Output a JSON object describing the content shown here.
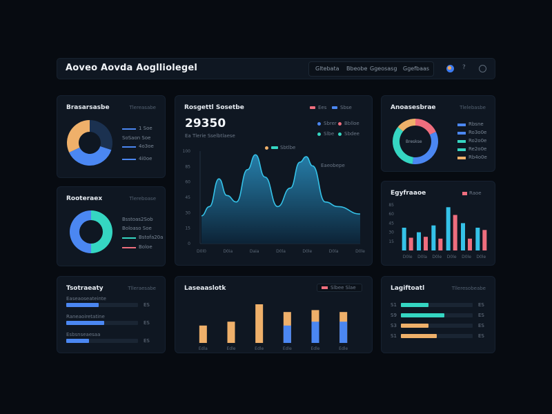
{
  "app": {
    "title": "Aoveo Aovda Aoglliolegel"
  },
  "nav": {
    "tabs": [
      {
        "label": "Gltebata"
      },
      {
        "label": "Bbeobe"
      },
      {
        "label": "Ggeosasg"
      },
      {
        "label": "Ggefbaas"
      }
    ],
    "help_glyph": "?"
  },
  "colors": {
    "blue": "#4b87f2",
    "teal": "#35d6c2",
    "orange": "#efb06a",
    "pink": "#ef6e7e",
    "navy": "#1b3150",
    "cyan": "#35c2e8"
  },
  "cards": {
    "donut1": {
      "title": "Brasarsasbe",
      "sub": "Tlereasabe",
      "legend": [
        {
          "label": "1 Soe",
          "color": "#4b87f2"
        },
        {
          "label": "SoSaon Soe",
          "color": "#4b87f2"
        },
        {
          "label": "4o3oe",
          "color": "#4b87f2"
        },
        {
          "label": "4i0oe",
          "color": "#4b87f2"
        }
      ]
    },
    "donut2": {
      "title": "Rooteraex",
      "sub": "Tlereboase",
      "legend": [
        {
          "label": "Bsstoas2Sob",
          "color": "#35d6c2"
        },
        {
          "label": "Boloaso Soe",
          "color": "#4b87f2"
        },
        {
          "label": "Bstofa20a",
          "color": "#35d6c2"
        },
        {
          "label": "Boloe",
          "color": "#ef6e7e"
        }
      ]
    },
    "main": {
      "title": "Rosgettl Sosetbe",
      "big_value": "29350",
      "caption": "Ea Tlerie Sselbtlaese",
      "toggle_labels": [
        "Ees",
        "Sbse"
      ],
      "legend": [
        {
          "label": "Sbrer",
          "color": "#4b87f2"
        },
        {
          "label": "Bblloe",
          "color": "#ef6e7e"
        },
        {
          "label": "Slbe",
          "color": "#35d6c2"
        },
        {
          "label": "Sbdee",
          "color": "#35d6c2"
        }
      ],
      "series_tag": "Sbtlbe",
      "annotation": "Eaeobepe"
    },
    "donut3": {
      "title": "Anoasesbrae",
      "sub": "Tlelebasbe",
      "center_label": "Breskse",
      "legend": [
        {
          "label": "Rbsne",
          "color": "#4b87f2"
        },
        {
          "label": "Ro3o0e",
          "color": "#4b87f2"
        },
        {
          "label": "Ro2o0e",
          "color": "#35d6c2"
        },
        {
          "label": "Re2o0e",
          "color": "#35d6c2"
        },
        {
          "label": "Rb4o0e",
          "color": "#efb06a"
        }
      ]
    },
    "bars_right": {
      "title": "Egyfraaoe",
      "sub": "Raoe"
    },
    "hbars_left": {
      "title": "Tsotraeaty",
      "sub": "Tlleraesabe",
      "rows": [
        {
          "label": "Easeaoseateinte",
          "value_label": "ES",
          "value": 0.45,
          "color": "#4b87f2"
        },
        {
          "label": "Raneaoiretatine",
          "value_label": "ES",
          "value": 0.53,
          "color": "#4b87f2"
        },
        {
          "label": "Esbsnseaesaa",
          "value_label": "ES",
          "value": 0.32,
          "color": "#4b87f2"
        }
      ]
    },
    "bars_bottom": {
      "title": "Laseaaslotk",
      "legend_label": "Slbee Slae",
      "legend_color": "#ef6e7e"
    },
    "hbars_right": {
      "title": "Lagiftoatl",
      "sub": "Tlleresobeabe",
      "rows": [
        {
          "axis": "S1",
          "value_label": "ES",
          "value": 0.38,
          "color": "#35d6c2"
        },
        {
          "axis": "S9",
          "value_label": "ES",
          "value": 0.61,
          "color": "#35d6c2"
        },
        {
          "axis": "S3",
          "value_label": "ES",
          "value": 0.38,
          "color": "#efb06a"
        },
        {
          "axis": "S1",
          "value_label": "ES",
          "value": 0.5,
          "color": "#efb06a"
        }
      ]
    }
  },
  "chart_data": [
    {
      "type": "pie",
      "title": "Brasarsasbe",
      "categories": [
        "navy",
        "blue",
        "orange"
      ],
      "values": [
        30,
        38,
        32
      ],
      "colors": [
        "#1b3150",
        "#4b87f2",
        "#efb06a"
      ]
    },
    {
      "type": "pie",
      "title": "Rooteraex",
      "categories": [
        "teal",
        "blue"
      ],
      "values": [
        50,
        50
      ],
      "colors": [
        "#35d6c2",
        "#4b87f2"
      ]
    },
    {
      "type": "area",
      "title": "Rosgettl Sosetbe",
      "x": [
        "D0l0",
        "D0ia",
        "Daia",
        "D0la",
        "D0le",
        "D0la",
        "D0le"
      ],
      "y_ticks": [
        "0",
        "15",
        "30",
        "45",
        "60",
        "85",
        "100"
      ],
      "ylim": [
        0,
        100
      ],
      "xy": [
        [
          0,
          30
        ],
        [
          0.05,
          40
        ],
        [
          0.11,
          70
        ],
        [
          0.16,
          52
        ],
        [
          0.22,
          45
        ],
        [
          0.29,
          80
        ],
        [
          0.34,
          96
        ],
        [
          0.4,
          72
        ],
        [
          0.48,
          40
        ],
        [
          0.56,
          60
        ],
        [
          0.62,
          88
        ],
        [
          0.66,
          94
        ],
        [
          0.7,
          84
        ],
        [
          0.78,
          45
        ],
        [
          0.86,
          40
        ],
        [
          1.0,
          32
        ]
      ],
      "color": "#35c2e8"
    },
    {
      "type": "pie",
      "title": "Anoasesbrae",
      "categories": [
        "pink",
        "blue",
        "teal",
        "orange"
      ],
      "values": [
        18,
        34,
        34,
        14
      ],
      "colors": [
        "#ef6e7e",
        "#4b87f2",
        "#35d6c2",
        "#efb06a"
      ]
    },
    {
      "type": "bar",
      "title": "Egyfraaoe",
      "categories": [
        "D0le",
        "D0la",
        "D0le",
        "D0le",
        "D0le",
        "D0le"
      ],
      "series": [
        {
          "values": [
            50,
            40,
            55,
            95,
            60,
            50
          ],
          "color": "#35c2e8"
        },
        {
          "values": [
            28,
            30,
            26,
            78,
            26,
            45
          ],
          "color": "#ef6e7e"
        }
      ],
      "ylim": [
        0,
        100
      ],
      "y_ticks": [
        "0",
        "15",
        "30",
        "45",
        "60",
        "85"
      ]
    },
    {
      "type": "bar",
      "title": "Laseaaslotk",
      "categories": [
        "Edla",
        "Edle",
        "Edle",
        "Edle",
        "Edle",
        "Edle"
      ],
      "series": [
        {
          "values": [
            45,
            55,
            100,
            80,
            85,
            80
          ],
          "color": "#efb06a"
        },
        {
          "values": [
            0,
            0,
            0,
            45,
            55,
            55
          ],
          "color": "#4b87f2"
        }
      ],
      "ylim": [
        0,
        100
      ]
    }
  ]
}
